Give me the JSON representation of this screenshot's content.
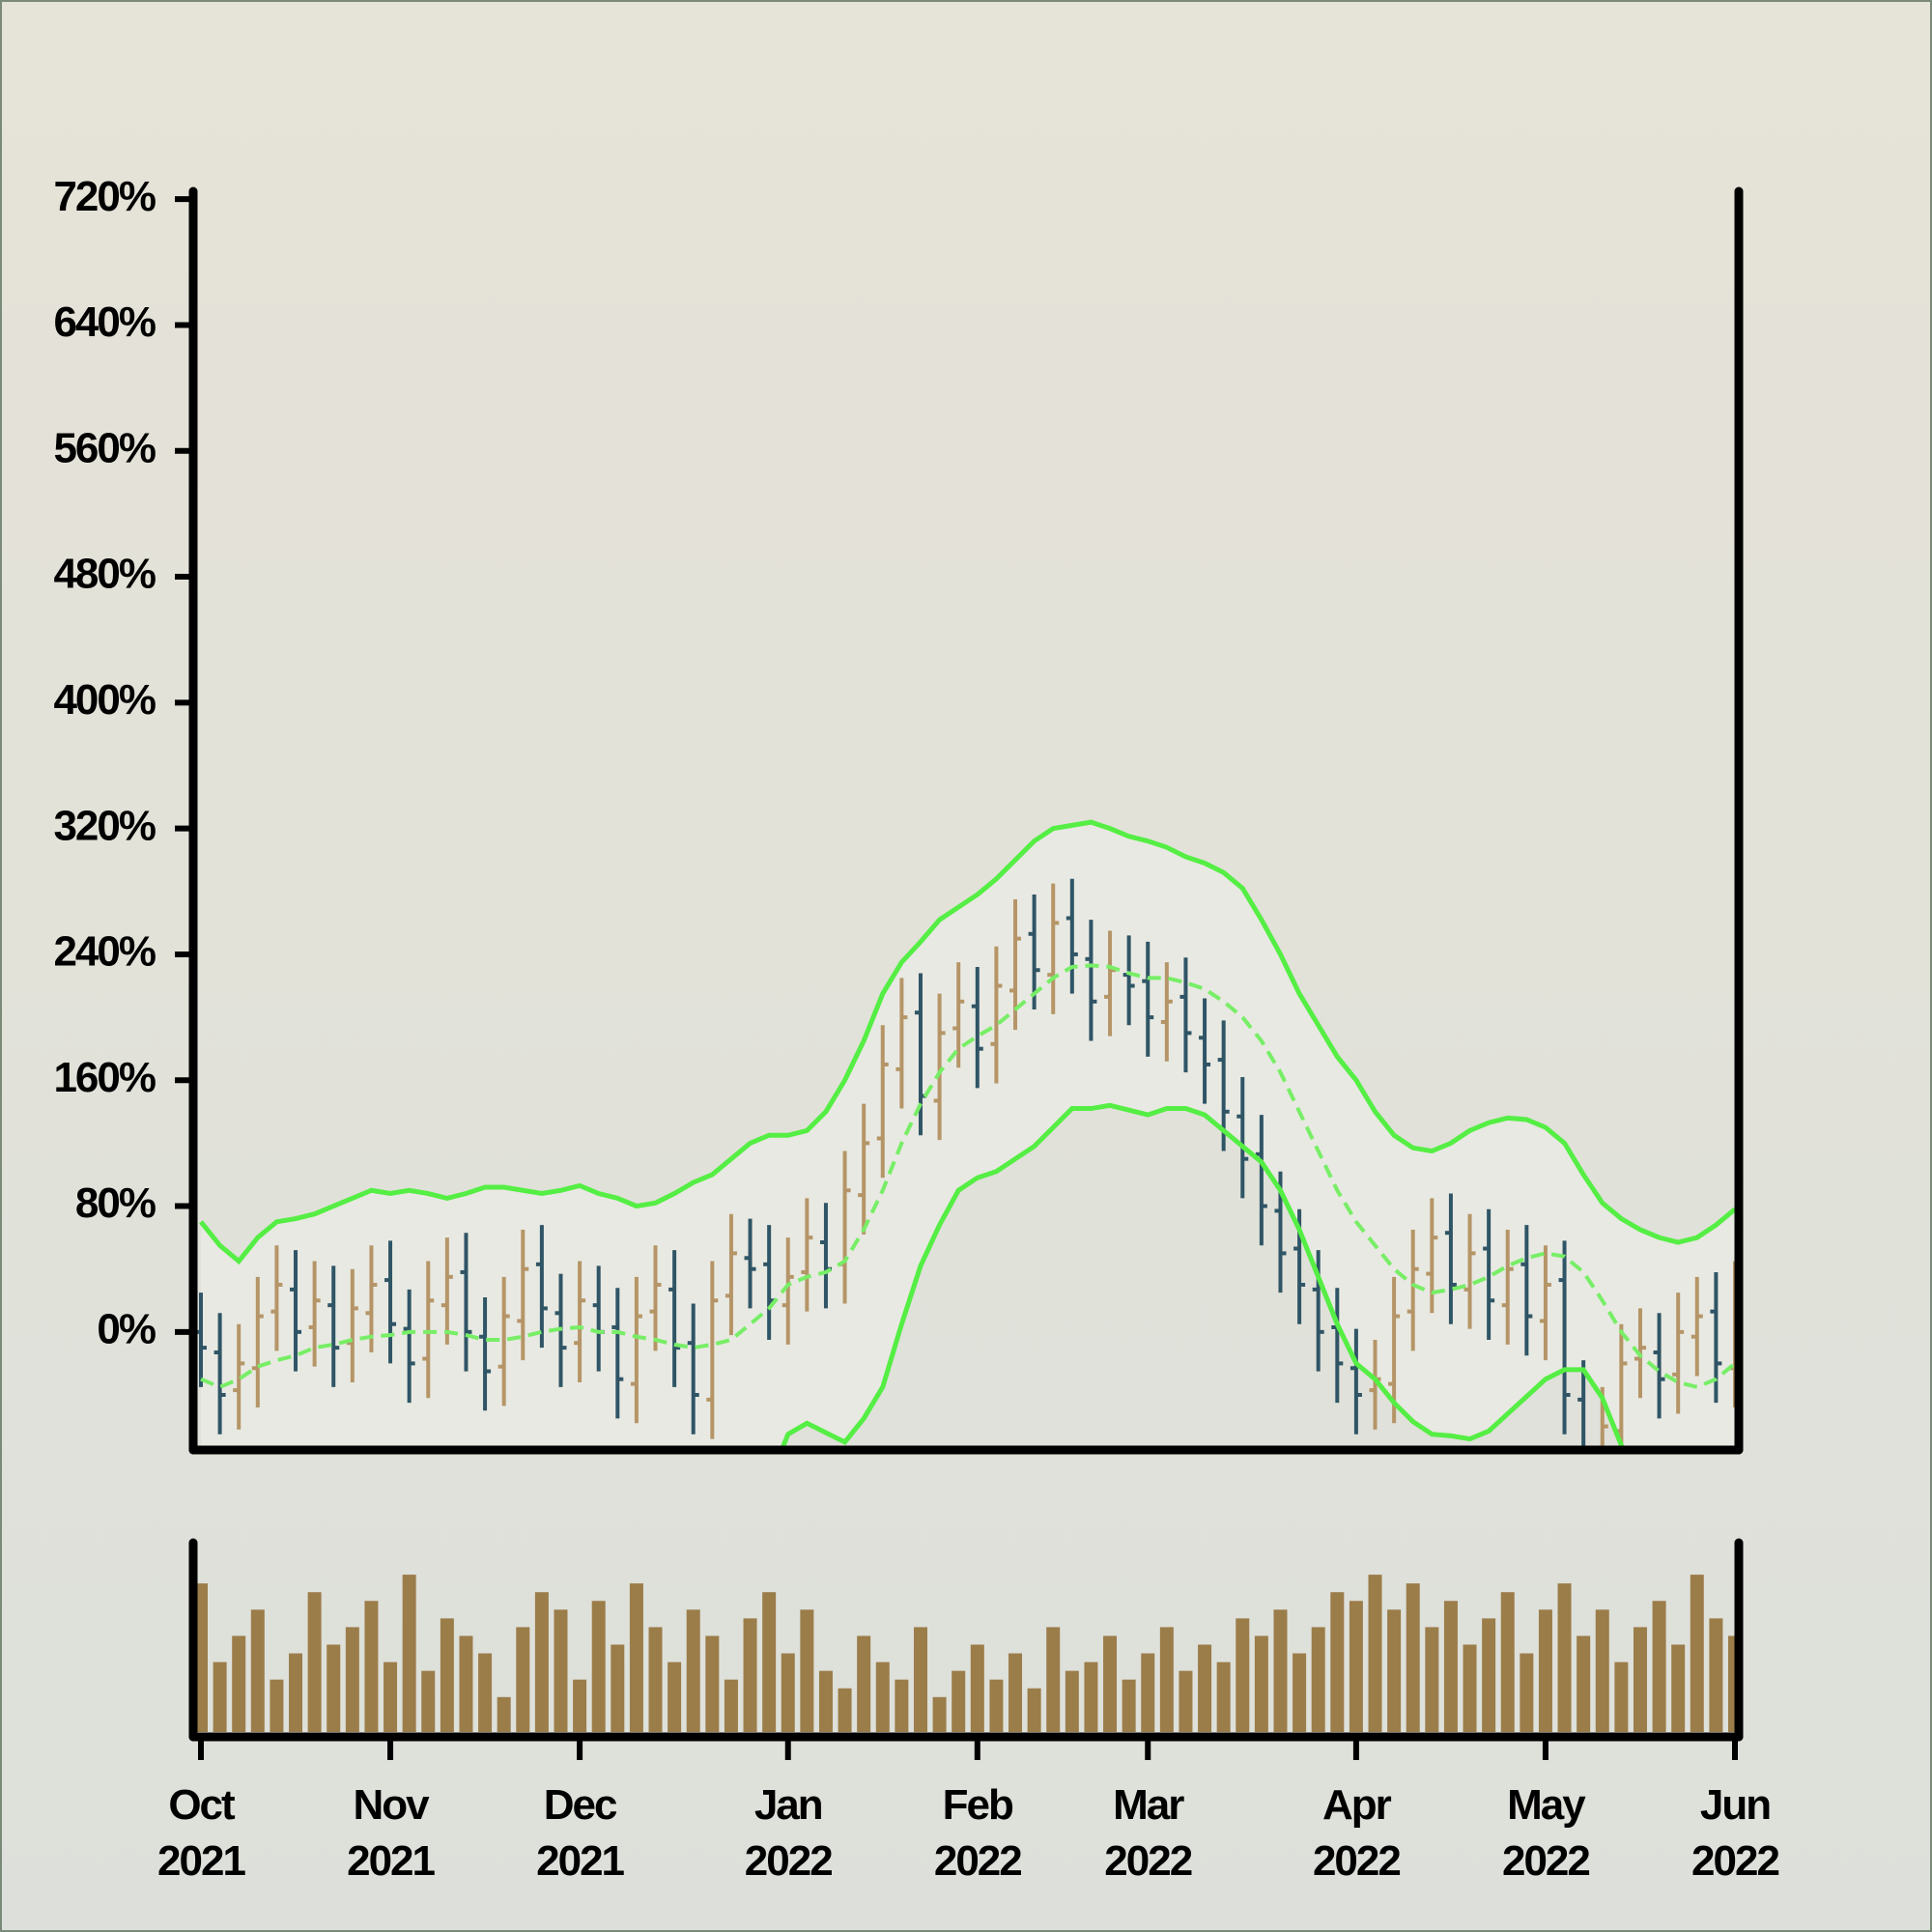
{
  "chart_data": {
    "type": "ohlc",
    "categories": [
      "Oct\n2021",
      null,
      null,
      null,
      null,
      null,
      null,
      null,
      null,
      null,
      "Nov\n2021",
      null,
      null,
      null,
      null,
      null,
      null,
      null,
      null,
      null,
      "Dec\n2021",
      null,
      null,
      null,
      null,
      null,
      null,
      null,
      null,
      null,
      null,
      "Jan\n2022",
      null,
      null,
      null,
      null,
      null,
      null,
      null,
      null,
      null,
      "Feb\n2022",
      null,
      null,
      null,
      null,
      null,
      null,
      null,
      null,
      "Mar\n2022",
      null,
      null,
      null,
      null,
      null,
      null,
      null,
      null,
      null,
      null,
      "Apr\n2022",
      null,
      null,
      null,
      null,
      null,
      null,
      null,
      null,
      null,
      "May\n2022",
      null,
      null,
      null,
      null,
      null,
      null,
      null,
      null,
      null,
      "Jun\n2022"
    ],
    "open": [
      0,
      -13,
      -37,
      -23,
      13,
      27,
      3,
      17,
      -7,
      12,
      33,
      2,
      -17,
      17,
      38,
      -3,
      -22,
      7,
      43,
      12,
      -7,
      17,
      3,
      -33,
      13,
      27,
      -7,
      -43,
      23,
      47,
      43,
      17,
      38,
      57,
      43,
      87,
      123,
      167,
      203,
      147,
      193,
      207,
      183,
      217,
      253,
      227,
      263,
      237,
      213,
      227,
      223,
      197,
      213,
      187,
      173,
      137,
      113,
      77,
      53,
      27,
      3,
      -23,
      -37,
      -33,
      13,
      37,
      63,
      27,
      53,
      17,
      43,
      7,
      33,
      -43,
      -77,
      -63,
      -17,
      -13,
      -27,
      -3,
      13,
      -23
    ],
    "high": [
      25,
      12,
      5,
      35,
      55,
      52,
      45,
      42,
      40,
      55,
      58,
      27,
      45,
      60,
      63,
      22,
      35,
      65,
      68,
      37,
      45,
      42,
      28,
      35,
      55,
      52,
      18,
      45,
      75,
      72,
      68,
      60,
      85,
      82,
      115,
      145,
      195,
      225,
      228,
      215,
      235,
      232,
      245,
      275,
      278,
      285,
      288,
      262,
      255,
      252,
      248,
      235,
      238,
      212,
      198,
      162,
      138,
      102,
      78,
      52,
      28,
      2,
      -5,
      35,
      65,
      85,
      88,
      75,
      78,
      65,
      68,
      55,
      58,
      -18,
      -35,
      5,
      15,
      12,
      25,
      35,
      38,
      45
    ],
    "low": [
      -35,
      -65,
      -62,
      -48,
      -12,
      -25,
      -22,
      -35,
      -32,
      -13,
      -20,
      -45,
      -42,
      -8,
      -25,
      -50,
      -47,
      -18,
      -10,
      -35,
      -32,
      -25,
      -55,
      -58,
      -12,
      -35,
      -65,
      -68,
      -2,
      15,
      -5,
      -8,
      13,
      15,
      18,
      62,
      98,
      142,
      125,
      122,
      168,
      155,
      158,
      192,
      205,
      202,
      215,
      185,
      188,
      195,
      175,
      172,
      165,
      145,
      115,
      85,
      55,
      25,
      5,
      -25,
      -45,
      -65,
      -62,
      -58,
      -12,
      12,
      5,
      2,
      -5,
      -8,
      -15,
      -18,
      -65,
      -105,
      -102,
      -88,
      -42,
      -55,
      -52,
      -28,
      -45,
      -48
    ],
    "close": [
      -10,
      -40,
      -20,
      10,
      30,
      0,
      20,
      -10,
      15,
      30,
      5,
      -20,
      20,
      35,
      0,
      -25,
      10,
      40,
      15,
      -10,
      20,
      0,
      -30,
      10,
      30,
      -10,
      -40,
      20,
      50,
      40,
      20,
      35,
      60,
      40,
      90,
      120,
      170,
      200,
      150,
      190,
      210,
      180,
      220,
      250,
      230,
      260,
      240,
      210,
      230,
      220,
      200,
      210,
      190,
      170,
      140,
      110,
      80,
      50,
      30,
      0,
      -20,
      -40,
      -30,
      10,
      40,
      60,
      30,
      50,
      20,
      40,
      10,
      30,
      -40,
      -80,
      -60,
      -20,
      -10,
      -30,
      0,
      10,
      -20,
      20
    ],
    "up_color": "#b59567",
    "down_color": "#2f5566",
    "ylim": [
      -75,
      725
    ],
    "yticks": [
      {
        "value": 0,
        "label": "0%"
      },
      {
        "value": 80,
        "label": "80%"
      },
      {
        "value": 160,
        "label": "160%"
      },
      {
        "value": 240,
        "label": "240%"
      },
      {
        "value": 320,
        "label": "320%"
      },
      {
        "value": 400,
        "label": "400%"
      },
      {
        "value": 480,
        "label": "480%"
      },
      {
        "value": 560,
        "label": "560%"
      },
      {
        "value": 640,
        "label": "640%"
      },
      {
        "value": 720,
        "label": "720%"
      }
    ],
    "bands": {
      "color": "#55ee44",
      "middle_color": "#77ee66",
      "fill": "#e8e9e2",
      "upper": [
        70,
        55,
        45,
        60,
        70,
        72,
        75,
        80,
        85,
        90,
        88,
        90,
        88,
        85,
        88,
        92,
        92,
        90,
        88,
        90,
        93,
        88,
        85,
        80,
        82,
        88,
        95,
        100,
        110,
        120,
        125,
        125,
        128,
        140,
        160,
        185,
        215,
        235,
        248,
        262,
        270,
        278,
        288,
        300,
        312,
        320,
        322,
        324,
        320,
        315,
        312,
        308,
        302,
        298,
        292,
        282,
        262,
        240,
        215,
        195,
        175,
        160,
        140,
        125,
        117,
        115,
        120,
        128,
        133,
        136,
        135,
        130,
        120,
        100,
        82,
        72,
        65,
        60,
        57,
        60,
        68,
        78
      ],
      "middle": [
        -30,
        -35,
        -30,
        -22,
        -18,
        -15,
        -10,
        -8,
        -5,
        -3,
        -2,
        0,
        0,
        0,
        -2,
        -5,
        -5,
        -3,
        0,
        2,
        3,
        0,
        0,
        -3,
        -5,
        -8,
        -10,
        -8,
        -5,
        5,
        15,
        30,
        35,
        38,
        45,
        65,
        90,
        120,
        145,
        165,
        180,
        188,
        195,
        205,
        215,
        225,
        232,
        233,
        232,
        228,
        225,
        225,
        222,
        218,
        210,
        200,
        185,
        165,
        140,
        115,
        90,
        70,
        55,
        40,
        30,
        25,
        27,
        30,
        35,
        42,
        47,
        50,
        48,
        38,
        20,
        0,
        -15,
        -25,
        -32,
        -35,
        -30,
        -20
      ],
      "lower": [
        -130,
        -125,
        -105,
        -104,
        -106,
        -102,
        -95,
        -96,
        -95,
        -96,
        -92,
        -90,
        -88,
        -85,
        -92,
        -102,
        -102,
        -96,
        -88,
        -86,
        -87,
        -88,
        -85,
        -86,
        -92,
        -104,
        -115,
        -116,
        -120,
        -110,
        -95,
        -65,
        -58,
        -64,
        -70,
        -55,
        -35,
        5,
        42,
        68,
        90,
        98,
        102,
        110,
        118,
        130,
        142,
        142,
        144,
        141,
        138,
        142,
        142,
        138,
        128,
        118,
        108,
        90,
        65,
        35,
        5,
        -20,
        -30,
        -45,
        -57,
        -65,
        -66,
        -68,
        -63,
        -52,
        -41,
        -30,
        -24,
        -24,
        -42,
        -72,
        -95,
        -110,
        -121,
        -130,
        -128,
        -118
      ]
    },
    "volume": {
      "color": "#9b7d4a",
      "ylim": [
        0,
        100
      ],
      "values": [
        85,
        40,
        55,
        70,
        30,
        45,
        80,
        50,
        60,
        75,
        40,
        90,
        35,
        65,
        55,
        45,
        20,
        60,
        80,
        70,
        30,
        75,
        50,
        85,
        60,
        40,
        70,
        55,
        30,
        65,
        80,
        45,
        70,
        35,
        25,
        55,
        40,
        30,
        60,
        20,
        35,
        50,
        30,
        45,
        25,
        60,
        35,
        40,
        55,
        30,
        45,
        60,
        35,
        50,
        40,
        65,
        55,
        70,
        45,
        60,
        80,
        75,
        90,
        70,
        85,
        60,
        75,
        50,
        65,
        80,
        45,
        70,
        85,
        55,
        70,
        40,
        60,
        75,
        50,
        90,
        65,
        55
      ]
    }
  }
}
